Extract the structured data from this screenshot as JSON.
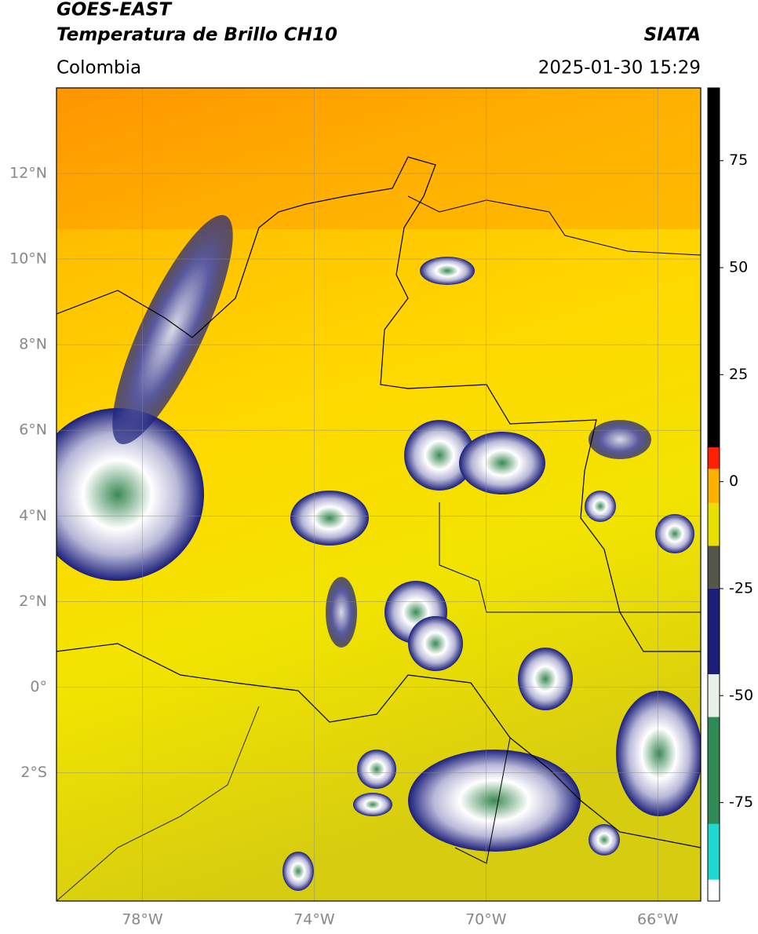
{
  "chart_data": {
    "type": "map",
    "title": "GOES-EAST",
    "subtitle": "Temperatura de Brillo CH10",
    "source": "SIATA",
    "region": "Colombia",
    "datetime": "2025-01-30 15:29",
    "xlim": [
      -80,
      -65
    ],
    "ylim": [
      -5,
      14
    ],
    "xticks": [
      {
        "value": -78,
        "label": "78°W"
      },
      {
        "value": -74,
        "label": "74°W"
      },
      {
        "value": -70,
        "label": "70°W"
      },
      {
        "value": -66,
        "label": "66°W"
      }
    ],
    "yticks": [
      {
        "value": 12,
        "label": "12°N"
      },
      {
        "value": 10,
        "label": "10°N"
      },
      {
        "value": 8,
        "label": "8°N"
      },
      {
        "value": 6,
        "label": "6°N"
      },
      {
        "value": 4,
        "label": "4°N"
      },
      {
        "value": 2,
        "label": "2°N"
      },
      {
        "value": 0,
        "label": "0°"
      },
      {
        "value": -2,
        "label": "2°S"
      }
    ],
    "grid": true,
    "colorbar": {
      "lim": [
        -98,
        92
      ],
      "ticks": [
        75,
        50,
        25,
        0,
        -25,
        -50,
        -75
      ],
      "bounds": [
        -98,
        -93,
        -80,
        -55,
        -45,
        -25,
        -15,
        -5,
        3,
        8,
        92
      ],
      "colors": [
        "#ffffff",
        "#1fd8d0",
        "#2f8a55",
        "#e8f0e8",
        "#1c1f7a",
        "#55554a",
        "#e8e000",
        "#ffb000",
        "#ff2000",
        "#000000"
      ]
    }
  }
}
